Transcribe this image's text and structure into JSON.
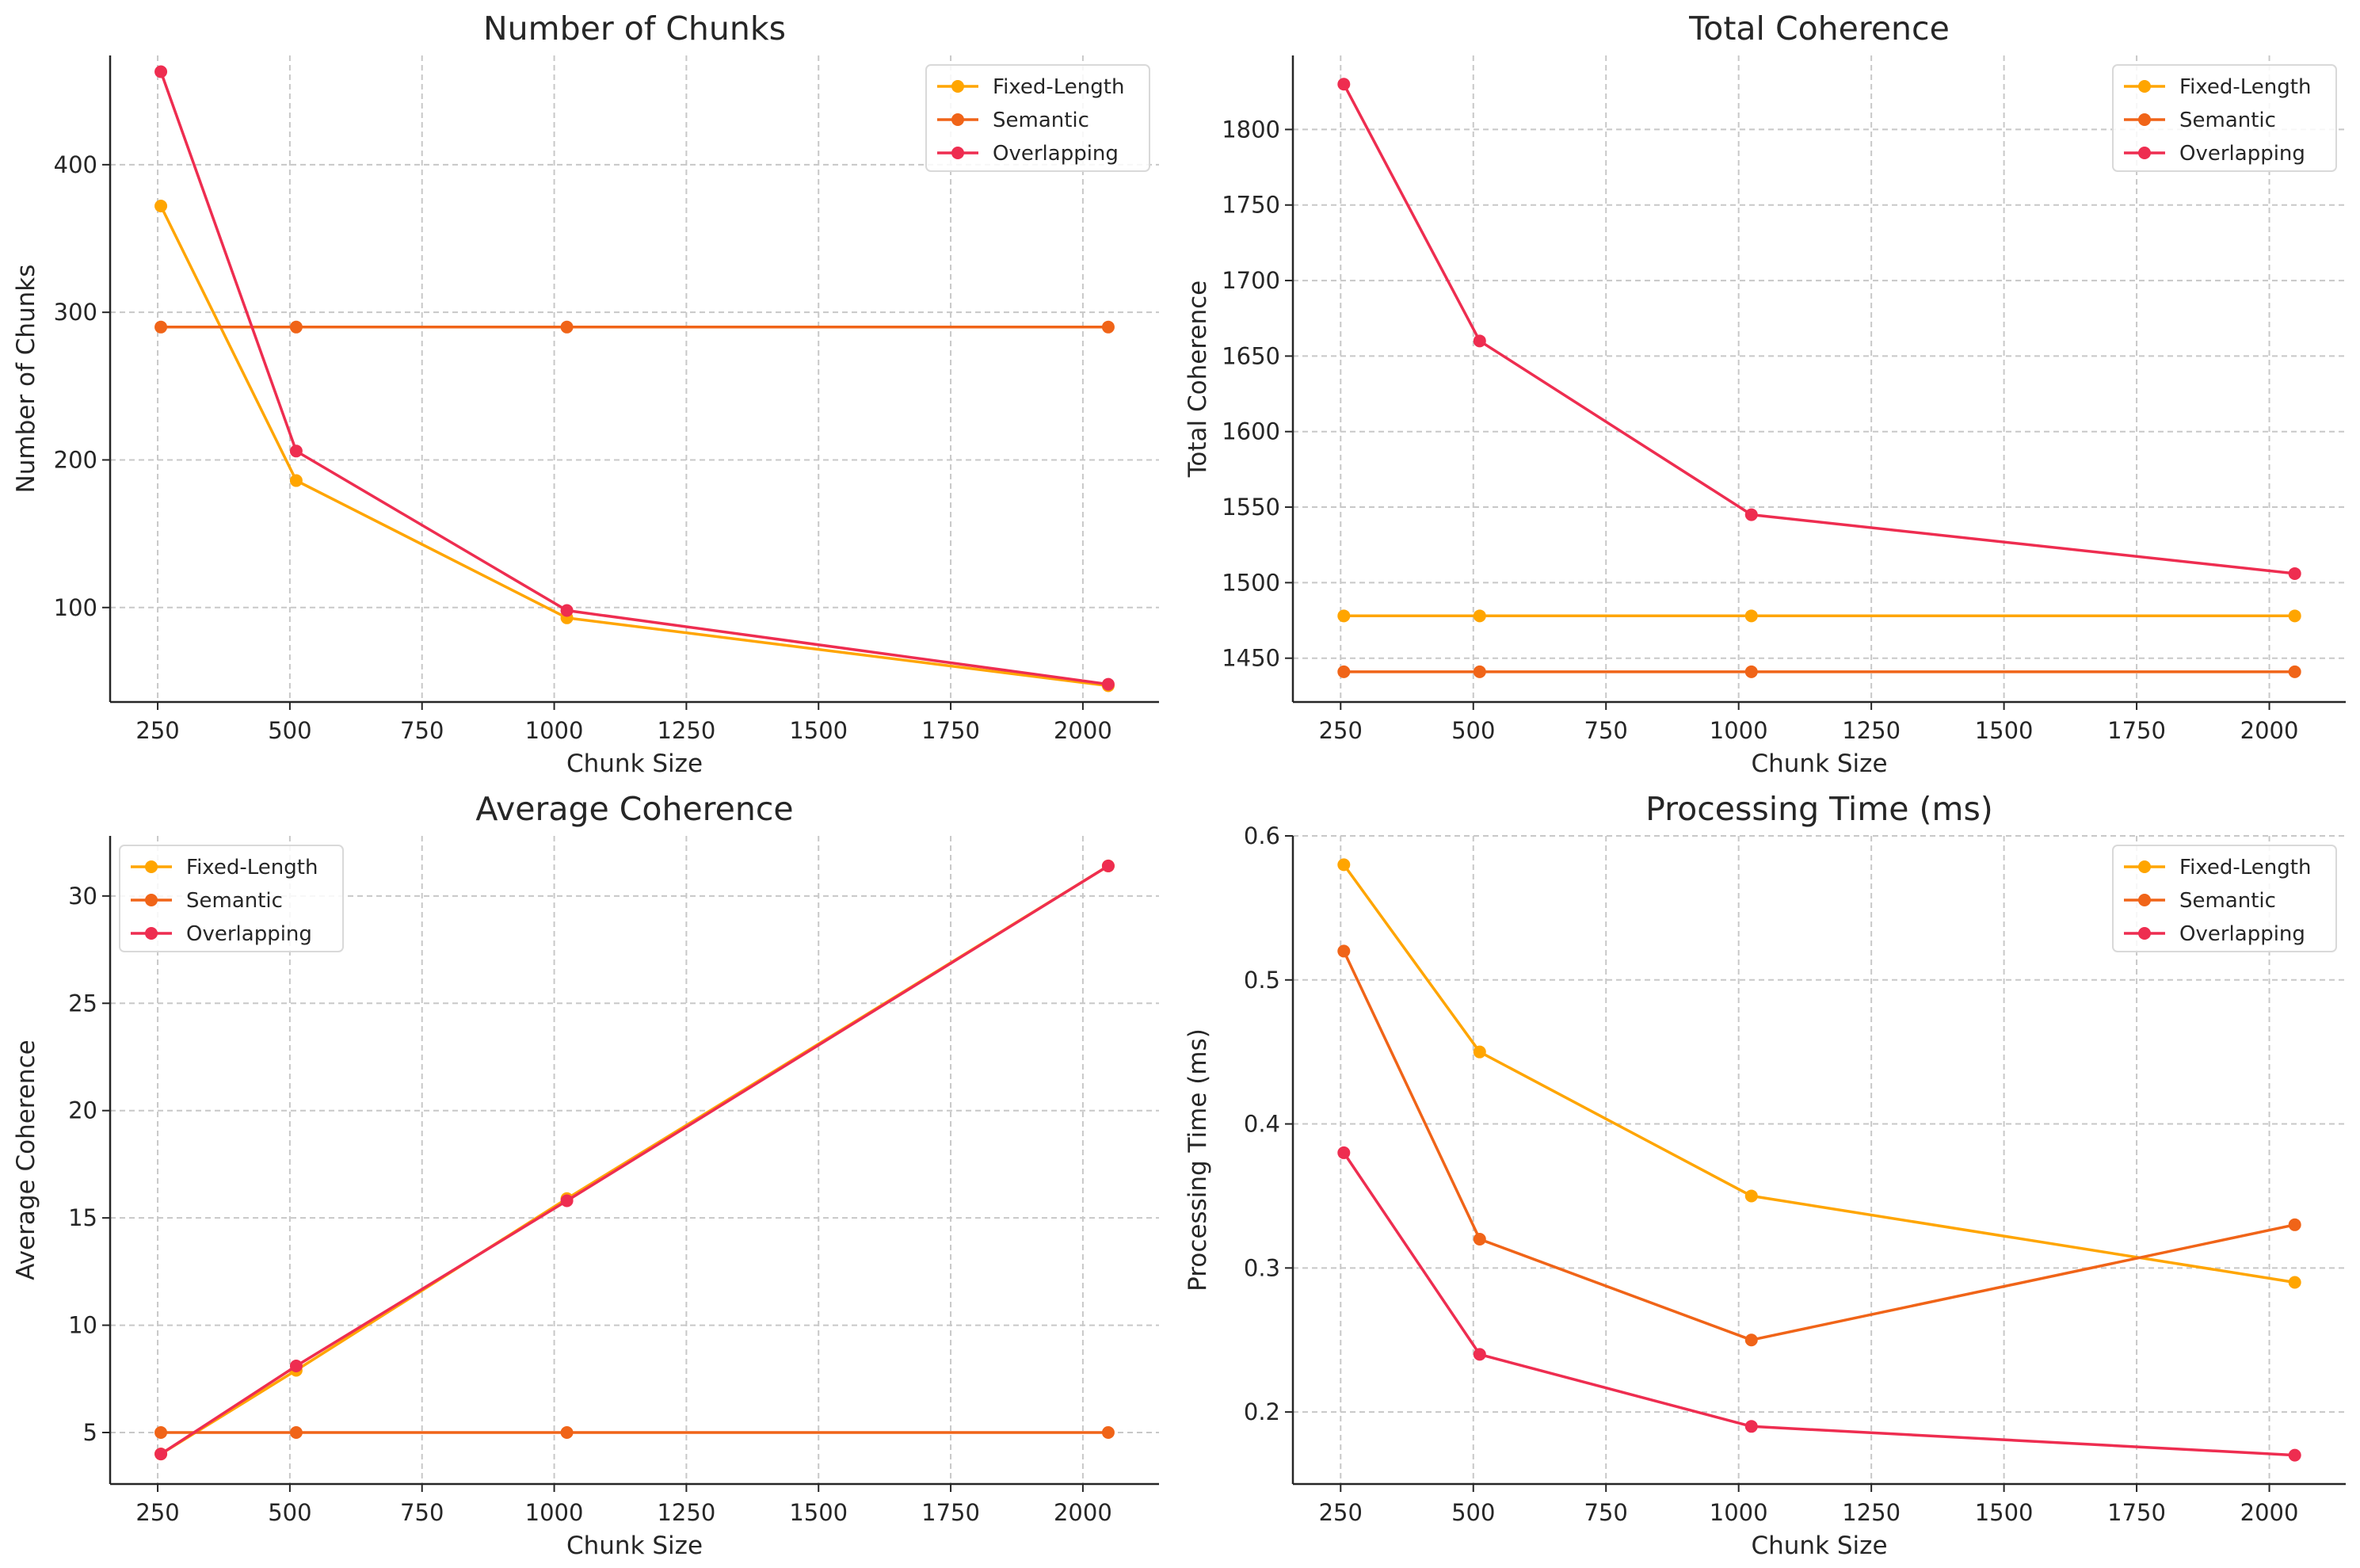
{
  "chart_data": [
    {
      "type": "line",
      "title": "Number of Chunks",
      "xlabel": "Chunk Size",
      "ylabel": "Number of Chunks",
      "x": [
        256,
        512,
        1024,
        2048
      ],
      "xlim": [
        160,
        2144
      ],
      "ylim": [
        36,
        474
      ],
      "xticks": [
        250,
        500,
        750,
        1000,
        1250,
        1500,
        1750,
        2000
      ],
      "yticks": [
        100,
        200,
        300,
        400
      ],
      "grid": true,
      "legend": "top-right",
      "series": [
        {
          "name": "Fixed-Length",
          "color": "#FFA500",
          "values": [
            372,
            186,
            93,
            47
          ]
        },
        {
          "name": "Semantic",
          "color": "#F06418",
          "values": [
            290,
            290,
            290,
            290
          ]
        },
        {
          "name": "Overlapping",
          "color": "#EE2D50",
          "values": [
            463,
            206,
            98,
            48
          ]
        }
      ]
    },
    {
      "type": "line",
      "title": "Total Coherence",
      "xlabel": "Chunk Size",
      "ylabel": "Total Coherence",
      "x": [
        256,
        512,
        1024,
        2048
      ],
      "xlim": [
        160,
        2144
      ],
      "ylim": [
        1421,
        1849
      ],
      "xticks": [
        250,
        500,
        750,
        1000,
        1250,
        1500,
        1750,
        2000
      ],
      "yticks": [
        1450,
        1500,
        1550,
        1600,
        1650,
        1700,
        1750,
        1800
      ],
      "grid": true,
      "legend": "top-right",
      "series": [
        {
          "name": "Fixed-Length",
          "color": "#FFA500",
          "values": [
            1478,
            1478,
            1478,
            1478
          ]
        },
        {
          "name": "Semantic",
          "color": "#F06418",
          "values": [
            1441,
            1441,
            1441,
            1441
          ]
        },
        {
          "name": "Overlapping",
          "color": "#EE2D50",
          "values": [
            1830,
            1660,
            1545,
            1506
          ]
        }
      ]
    },
    {
      "type": "line",
      "title": "Average Coherence",
      "xlabel": "Chunk Size",
      "ylabel": "Average Coherence",
      "x": [
        256,
        512,
        1024,
        2048
      ],
      "xlim": [
        160,
        2144
      ],
      "ylim": [
        2.6,
        32.8
      ],
      "xticks": [
        250,
        500,
        750,
        1000,
        1250,
        1500,
        1750,
        2000
      ],
      "yticks": [
        5,
        10,
        15,
        20,
        25,
        30
      ],
      "grid": true,
      "legend": "top-left",
      "series": [
        {
          "name": "Fixed-Length",
          "color": "#FFA500",
          "values": [
            4.0,
            7.9,
            15.9,
            31.4
          ]
        },
        {
          "name": "Semantic",
          "color": "#F06418",
          "values": [
            5.0,
            5.0,
            5.0,
            5.0
          ]
        },
        {
          "name": "Overlapping",
          "color": "#EE2D50",
          "values": [
            4.0,
            8.1,
            15.8,
            31.4
          ]
        }
      ]
    },
    {
      "type": "line",
      "title": "Processing Time (ms)",
      "xlabel": "Chunk Size",
      "ylabel": "Processing Time (ms)",
      "x": [
        256,
        512,
        1024,
        2048
      ],
      "xlim": [
        160,
        2144
      ],
      "ylim": [
        0.15,
        0.6
      ],
      "xticks": [
        250,
        500,
        750,
        1000,
        1250,
        1500,
        1750,
        2000
      ],
      "yticks": [
        0.2,
        0.3,
        0.4,
        0.5,
        0.6
      ],
      "grid": true,
      "legend": "top-right",
      "series": [
        {
          "name": "Fixed-Length",
          "color": "#FFA500",
          "values": [
            0.58,
            0.45,
            0.35,
            0.29
          ]
        },
        {
          "name": "Semantic",
          "color": "#F06418",
          "values": [
            0.52,
            0.32,
            0.25,
            0.33
          ]
        },
        {
          "name": "Overlapping",
          "color": "#EE2D50",
          "values": [
            0.38,
            0.24,
            0.19,
            0.17
          ]
        }
      ]
    }
  ]
}
